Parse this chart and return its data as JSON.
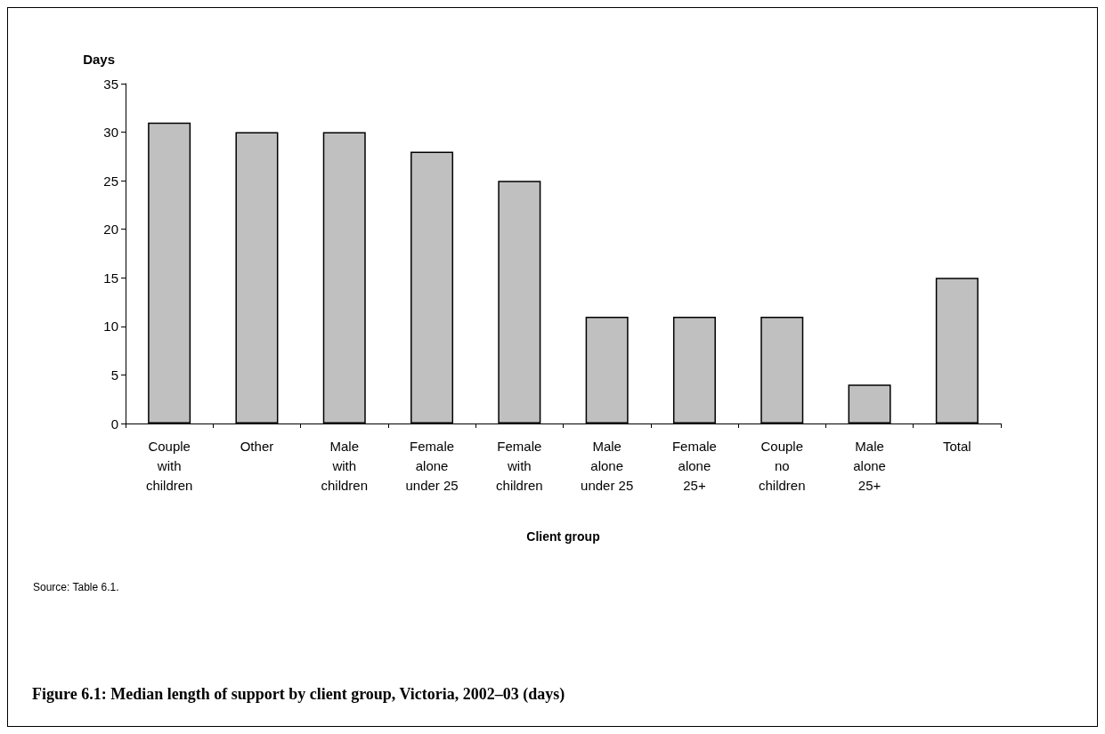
{
  "chart_data": {
    "type": "bar",
    "title": "Figure 6.1: Median length of support by client group, Victoria, 2002–03 (days)",
    "xlabel": "Client group",
    "ylabel": "Days",
    "categories": [
      "Couple\nwith\nchildren",
      "Other",
      "Male\nwith\nchildren",
      "Female\nalone\nunder 25",
      "Female\nwith\nchildren",
      "Male\nalone\nunder 25",
      "Female\nalone\n25+",
      "Couple\nno\nchildren",
      "Male\nalone\n25+",
      "Total"
    ],
    "values": [
      31,
      30,
      30,
      28,
      25,
      11,
      11,
      11,
      4,
      15
    ],
    "color": "#c0c0c0",
    "ylim": [
      0,
      35
    ],
    "yticks": [
      0,
      5,
      10,
      15,
      20,
      25,
      30,
      35
    ],
    "grid": false,
    "annotations": [
      "Source: Table 6.1."
    ]
  }
}
